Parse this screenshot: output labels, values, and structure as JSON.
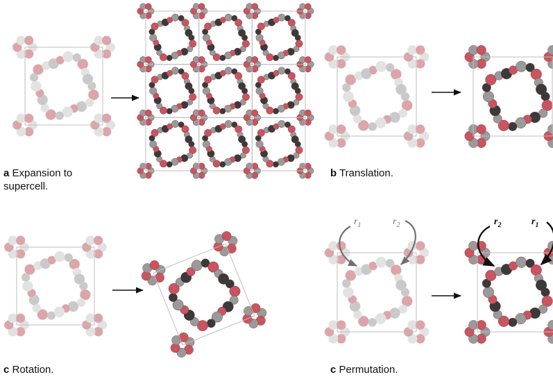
{
  "panels": {
    "a": {
      "letter": "a",
      "text": " Expansion to",
      "text2": "supercell."
    },
    "b": {
      "letter": "b",
      "text": " Translation."
    },
    "c_rot": {
      "letter": "c",
      "text": " Rotation."
    },
    "c_perm": {
      "letter": "c",
      "text": " Permutation."
    }
  },
  "permutation_labels": {
    "before": {
      "r1": "r",
      "r1_sub": "1",
      "r2": "r",
      "r2_sub": "2"
    },
    "after": {
      "r2": "r",
      "r2_sub": "2",
      "r1": "r",
      "r1_sub": "1"
    }
  },
  "colors": {
    "oxygen": "#c8555f",
    "carbon_dark": "#3a3a3a",
    "carbon_light": "#9a9a9a",
    "cell_line": "#bdbdbd",
    "arrow": "#111111",
    "pointer_gray": "#707070",
    "pointer_black": "#111111"
  }
}
